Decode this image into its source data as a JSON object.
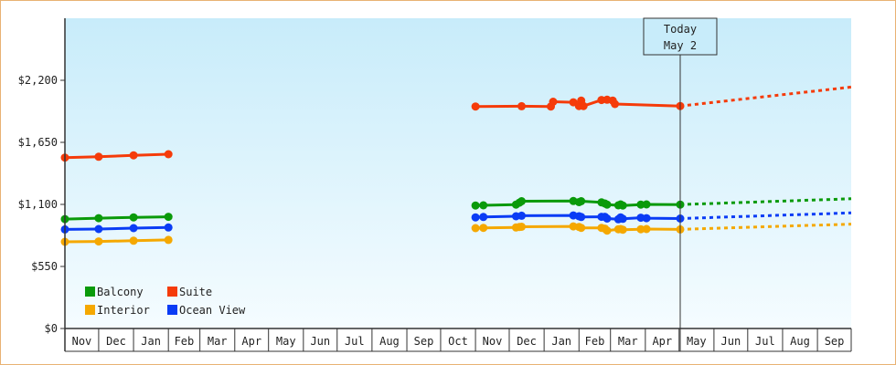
{
  "chart_data": {
    "type": "line",
    "title": "",
    "xlabel": "",
    "ylabel": "",
    "ylim": [
      0,
      2750
    ],
    "y_ticks": [
      {
        "value": 0,
        "label": "$0"
      },
      {
        "value": 550,
        "label": "$550"
      },
      {
        "value": 1100,
        "label": "$1,100"
      },
      {
        "value": 1650,
        "label": "$1,650"
      },
      {
        "value": 2200,
        "label": "$2,200"
      }
    ],
    "x_start": "2017-11-01",
    "x_end": "2019-10-01",
    "x_ticks": [
      {
        "label": "Nov",
        "start": "2017-11-01"
      },
      {
        "label": "Dec",
        "start": "2017-12-01"
      },
      {
        "label": "Jan",
        "start": "2018-01-01"
      },
      {
        "label": "Feb",
        "start": "2018-02-01"
      },
      {
        "label": "Mar",
        "start": "2018-03-01"
      },
      {
        "label": "Apr",
        "start": "2018-04-01"
      },
      {
        "label": "May",
        "start": "2018-05-01"
      },
      {
        "label": "Jun",
        "start": "2018-06-01"
      },
      {
        "label": "Jul",
        "start": "2018-07-01"
      },
      {
        "label": "Aug",
        "start": "2018-08-01"
      },
      {
        "label": "Sep",
        "start": "2018-09-01"
      },
      {
        "label": "Oct",
        "start": "2018-10-01"
      },
      {
        "label": "Nov",
        "start": "2018-11-01"
      },
      {
        "label": "Dec",
        "start": "2018-12-01"
      },
      {
        "label": "Jan",
        "start": "2019-01-01"
      },
      {
        "label": "Feb",
        "start": "2019-02-01"
      },
      {
        "label": "Mar",
        "start": "2019-03-01"
      },
      {
        "label": "Apr",
        "start": "2019-04-01"
      },
      {
        "label": "May",
        "start": "2019-05-01"
      },
      {
        "label": "Jun",
        "start": "2019-06-01"
      },
      {
        "label": "Jul",
        "start": "2019-07-01"
      },
      {
        "label": "Aug",
        "start": "2019-08-01"
      },
      {
        "label": "Sep",
        "start": "2019-09-01"
      }
    ],
    "today": {
      "line1": "Today",
      "line2": "May 2",
      "date": "2019-05-02"
    },
    "grid": false,
    "legend_position": "bottom-left",
    "series": [
      {
        "name": "Balcony",
        "color": "#0a9a0a",
        "segments": [
          [
            [
              "2017-11-01",
              970
            ],
            [
              "2017-12-01",
              978
            ],
            [
              "2018-01-01",
              985
            ],
            [
              "2018-02-01",
              990
            ]
          ],
          [
            [
              "2018-11-01",
              1090
            ],
            [
              "2018-11-08",
              1092
            ],
            [
              "2018-12-07",
              1098
            ],
            [
              "2018-12-10",
              1115
            ],
            [
              "2018-12-12",
              1128
            ],
            [
              "2019-01-27",
              1130
            ],
            [
              "2019-02-01",
              1120
            ],
            [
              "2019-02-03",
              1128
            ],
            [
              "2019-02-21",
              1118
            ],
            [
              "2019-02-24",
              1108
            ],
            [
              "2019-02-26",
              1098
            ],
            [
              "2019-03-08",
              1092
            ],
            [
              "2019-03-10",
              1100
            ],
            [
              "2019-03-12",
              1090
            ],
            [
              "2019-03-28",
              1098
            ],
            [
              "2019-04-02",
              1100
            ],
            [
              "2019-05-02",
              1098
            ]
          ]
        ],
        "forecast": [
          [
            "2019-05-02",
            1098
          ],
          [
            "2019-10-01",
            1150
          ]
        ]
      },
      {
        "name": "Suite",
        "color": "#f53b0a",
        "segments": [
          [
            [
              "2017-11-01",
              1515
            ],
            [
              "2017-12-01",
              1522
            ],
            [
              "2018-01-01",
              1535
            ],
            [
              "2018-02-01",
              1545
            ]
          ],
          [
            [
              "2018-11-01",
              1968
            ],
            [
              "2018-12-12",
              1970
            ],
            [
              "2019-01-07",
              1968
            ],
            [
              "2019-01-09",
              2010
            ],
            [
              "2019-01-27",
              2005
            ],
            [
              "2019-02-01",
              1972
            ],
            [
              "2019-02-03",
              2020
            ],
            [
              "2019-02-05",
              1972
            ],
            [
              "2019-02-21",
              2025
            ],
            [
              "2019-02-26",
              2028
            ],
            [
              "2019-03-03",
              2020
            ],
            [
              "2019-03-05",
              1990
            ],
            [
              "2019-05-02",
              1972
            ]
          ]
        ],
        "forecast": [
          [
            "2019-05-02",
            1972
          ],
          [
            "2019-10-01",
            2140
          ]
        ]
      },
      {
        "name": "Interior",
        "color": "#f5a800",
        "segments": [
          [
            [
              "2017-11-01",
              768
            ],
            [
              "2017-12-01",
              772
            ],
            [
              "2018-01-01",
              778
            ],
            [
              "2018-02-01",
              785
            ]
          ],
          [
            [
              "2018-11-01",
              890
            ],
            [
              "2018-11-08",
              892
            ],
            [
              "2018-12-07",
              895
            ],
            [
              "2018-12-10",
              900
            ],
            [
              "2018-12-12",
              902
            ],
            [
              "2019-01-27",
              905
            ],
            [
              "2019-02-01",
              900
            ],
            [
              "2019-02-03",
              892
            ],
            [
              "2019-02-21",
              892
            ],
            [
              "2019-02-24",
              885
            ],
            [
              "2019-02-26",
              868
            ],
            [
              "2019-03-08",
              880
            ],
            [
              "2019-03-10",
              882
            ],
            [
              "2019-03-12",
              876
            ],
            [
              "2019-03-28",
              880
            ],
            [
              "2019-04-02",
              882
            ],
            [
              "2019-05-02",
              878
            ]
          ]
        ],
        "forecast": [
          [
            "2019-05-02",
            878
          ],
          [
            "2019-10-01",
            925
          ]
        ]
      },
      {
        "name": "Ocean View",
        "color": "#0a3cf5",
        "segments": [
          [
            [
              "2017-11-01",
              878
            ],
            [
              "2017-12-01",
              882
            ],
            [
              "2018-01-01",
              890
            ],
            [
              "2018-02-01",
              895
            ]
          ],
          [
            [
              "2018-11-01",
              985
            ],
            [
              "2018-11-08",
              988
            ],
            [
              "2018-12-07",
              995
            ],
            [
              "2018-12-12",
              1000
            ],
            [
              "2019-01-27",
              1002
            ],
            [
              "2019-02-01",
              995
            ],
            [
              "2019-02-03",
              988
            ],
            [
              "2019-02-21",
              990
            ],
            [
              "2019-02-24",
              990
            ],
            [
              "2019-02-26",
              975
            ],
            [
              "2019-03-08",
              968
            ],
            [
              "2019-03-10",
              985
            ],
            [
              "2019-03-12",
              972
            ],
            [
              "2019-03-28",
              982
            ],
            [
              "2019-04-02",
              978
            ],
            [
              "2019-05-02",
              975
            ]
          ]
        ],
        "forecast": [
          [
            "2019-05-02",
            975
          ],
          [
            "2019-10-01",
            1025
          ]
        ]
      }
    ]
  }
}
